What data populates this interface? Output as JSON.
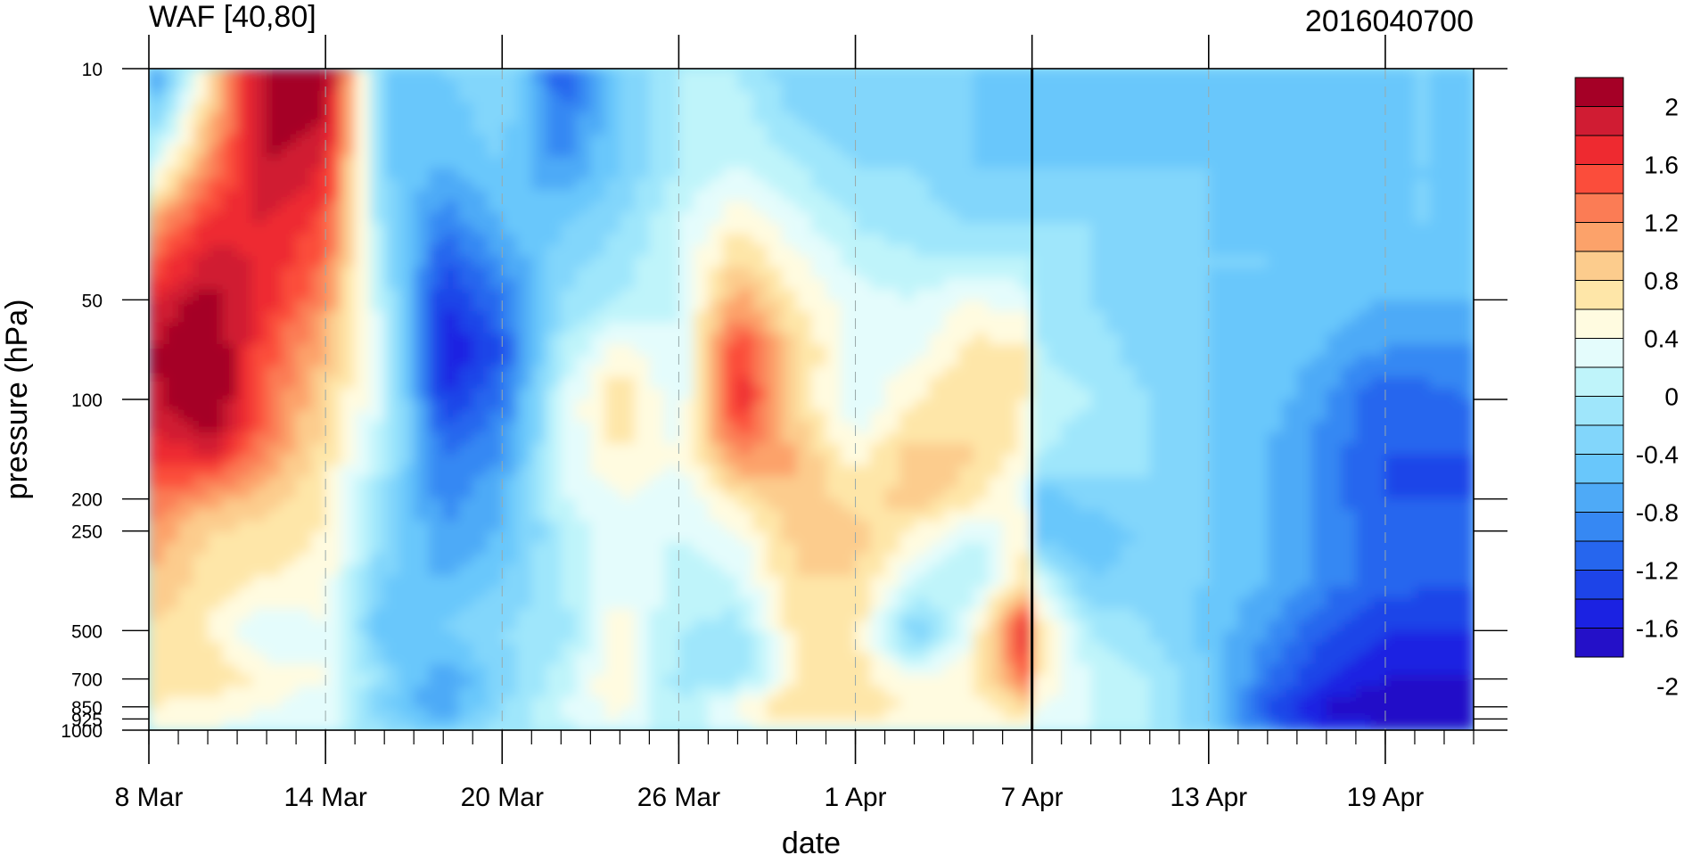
{
  "chart_data": {
    "type": "heatmap",
    "title_left": "WAF [40,80]",
    "title_right": "2016040700",
    "xlabel": "date",
    "ylabel": "pressure (hPa)",
    "x_tick_labels": [
      "8 Mar",
      "14 Mar",
      "20 Mar",
      "26 Mar",
      "1 Apr",
      "7 Apr",
      "13 Apr",
      "19 Apr"
    ],
    "x_tick_days": [
      0,
      6,
      12,
      18,
      24,
      30,
      36,
      42
    ],
    "x_range_days": [
      0,
      45
    ],
    "y_tick_labels": [
      "10",
      "50",
      "100",
      "200",
      "250",
      "500",
      "700",
      "850",
      "925",
      "1000"
    ],
    "y_tick_values": [
      10,
      50,
      100,
      200,
      250,
      500,
      700,
      850,
      925,
      1000
    ],
    "y_scale": "log",
    "y_reversed": true,
    "y_range": [
      10,
      1000
    ],
    "colorbar": {
      "labels": [
        "2",
        "1.6",
        "1.2",
        "0.8",
        "0.4",
        "0",
        "-0.4",
        "-0.8",
        "-1.2",
        "-1.6",
        "-2"
      ],
      "colors": [
        "#a50026",
        "#d01c33",
        "#ee2a30",
        "#fb4d3b",
        "#fb7c55",
        "#fca26a",
        "#fccc8d",
        "#fee6a8",
        "#fffbe0",
        "#e4fcfc",
        "#bff4fa",
        "#9fe6fb",
        "#82d6fb",
        "#69c7fb",
        "#4eaaf7",
        "#3688f3",
        "#2666ee",
        "#1d44e8",
        "#1b22e2",
        "#2410c8"
      ],
      "position": "right"
    },
    "current_date_marker": "7 Apr",
    "field": {
      "x_days": [
        0,
        2,
        4,
        6,
        8,
        10,
        12,
        14,
        16,
        18,
        20,
        22,
        24,
        26,
        28,
        29.8,
        30.2,
        32,
        34,
        36,
        38,
        40,
        42,
        45
      ],
      "p_levels": [
        10,
        20,
        30,
        50,
        70,
        100,
        150,
        200,
        250,
        350,
        500,
        700,
        850,
        1000
      ],
      "values": [
        [
          -1.2,
          0.4,
          2.0,
          2.0,
          -0.6,
          -0.6,
          -0.4,
          -1.4,
          -0.6,
          -0.2,
          -0.2,
          -0.6,
          -0.6,
          -0.6,
          -0.6,
          -0.6,
          -0.8,
          -0.8,
          -0.6,
          -0.6,
          -0.6,
          -0.6,
          -0.6,
          -0.6
        ],
        [
          0.0,
          1.0,
          1.8,
          1.6,
          -0.6,
          -0.8,
          -0.6,
          -1.0,
          -0.6,
          -0.2,
          0.0,
          -0.2,
          -0.4,
          -0.4,
          -0.6,
          -0.6,
          -0.6,
          -0.6,
          -0.6,
          -0.6,
          -0.6,
          -0.6,
          -0.6,
          -0.6
        ],
        [
          0.9,
          1.5,
          1.6,
          1.3,
          -0.4,
          -1.2,
          -0.8,
          -0.6,
          -0.4,
          0.0,
          0.4,
          0.1,
          -0.2,
          -0.3,
          -0.4,
          -0.4,
          -0.4,
          -0.4,
          -0.5,
          -0.6,
          -0.6,
          -0.6,
          -0.6,
          -0.6
        ],
        [
          1.6,
          1.9,
          1.5,
          1.0,
          -0.2,
          -1.6,
          -1.2,
          -0.4,
          -0.2,
          0.0,
          0.9,
          0.4,
          0.1,
          0.0,
          0.2,
          0.1,
          -0.2,
          -0.4,
          -0.5,
          -0.6,
          -0.6,
          -0.7,
          -0.8,
          -0.8
        ],
        [
          1.8,
          2.1,
          1.3,
          0.8,
          0.0,
          -1.8,
          -1.4,
          -0.2,
          0.3,
          0.0,
          1.4,
          0.6,
          0.1,
          0.1,
          0.5,
          0.4,
          -0.2,
          -0.3,
          -0.5,
          -0.6,
          -0.6,
          -0.8,
          -1.0,
          -1.0
        ],
        [
          1.7,
          2.2,
          1.2,
          0.6,
          0.0,
          -1.6,
          -1.2,
          0.0,
          0.6,
          0.0,
          1.6,
          0.6,
          0.0,
          0.4,
          0.6,
          0.4,
          -0.1,
          -0.2,
          -0.4,
          -0.6,
          -0.7,
          -1.0,
          -1.4,
          -1.2
        ],
        [
          1.4,
          1.6,
          1.0,
          0.5,
          -0.2,
          -1.2,
          -1.0,
          0.0,
          0.4,
          0.2,
          1.0,
          0.8,
          0.3,
          0.7,
          0.6,
          0.3,
          -0.2,
          -0.3,
          -0.4,
          -0.6,
          -0.8,
          -1.1,
          -1.4,
          -1.4
        ],
        [
          1.2,
          0.9,
          0.7,
          0.4,
          -0.4,
          -1.1,
          -0.8,
          0.0,
          0.2,
          0.0,
          0.5,
          0.8,
          0.5,
          0.7,
          0.5,
          0.1,
          -0.8,
          -0.5,
          -0.4,
          -0.6,
          -0.8,
          -1.1,
          -1.4,
          -1.4
        ],
        [
          1.0,
          0.6,
          0.5,
          0.4,
          -0.4,
          -1.0,
          -0.8,
          -0.2,
          0.2,
          0.0,
          0.2,
          0.7,
          0.7,
          0.4,
          0.0,
          0.3,
          -0.8,
          -0.8,
          -0.5,
          -0.6,
          -0.8,
          -1.1,
          -1.3,
          -1.4
        ],
        [
          0.8,
          0.5,
          0.4,
          0.3,
          -0.6,
          -0.8,
          -0.6,
          -0.2,
          0.2,
          -0.1,
          0.0,
          0.6,
          0.6,
          0.0,
          -0.2,
          0.5,
          0.0,
          -0.6,
          -0.5,
          -0.6,
          -0.8,
          -1.1,
          -1.3,
          -1.4
        ],
        [
          0.6,
          0.4,
          0.0,
          0.2,
          -0.8,
          -0.6,
          -0.4,
          -0.3,
          0.3,
          -0.2,
          -0.3,
          0.5,
          0.5,
          -0.6,
          0.2,
          1.6,
          0.6,
          -0.2,
          -0.4,
          -0.7,
          -1.0,
          -1.4,
          -1.6,
          -1.6
        ],
        [
          0.5,
          0.6,
          0.3,
          0.2,
          -0.4,
          -1.0,
          -0.5,
          -0.1,
          0.4,
          -0.3,
          -0.3,
          0.4,
          0.5,
          0.2,
          0.4,
          1.2,
          0.4,
          0.0,
          -0.2,
          -0.6,
          -1.2,
          -1.6,
          -1.8,
          -1.8
        ],
        [
          0.4,
          0.3,
          0.2,
          0.1,
          -0.6,
          -1.0,
          -0.4,
          0.0,
          0.3,
          -0.2,
          0.3,
          0.6,
          0.5,
          0.4,
          0.3,
          0.6,
          0.2,
          0.0,
          -0.2,
          -0.6,
          -1.4,
          -1.9,
          -2.0,
          -2.1
        ],
        [
          0.3,
          0.2,
          0.1,
          0.1,
          -0.4,
          -0.6,
          -0.3,
          -0.1,
          0.1,
          -0.1,
          0.1,
          0.3,
          0.3,
          0.2,
          0.2,
          0.3,
          0.1,
          0.0,
          -0.2,
          -0.6,
          -1.2,
          -1.6,
          -1.8,
          -1.8
        ]
      ]
    }
  }
}
